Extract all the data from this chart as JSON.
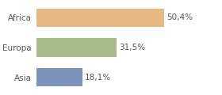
{
  "categories": [
    "Africa",
    "Europa",
    "Asia"
  ],
  "values": [
    50.4,
    31.5,
    18.1
  ],
  "labels": [
    "50,4%",
    "31,5%",
    "18,1%"
  ],
  "bar_colors": [
    "#e8b882",
    "#a8bc8a",
    "#7b93b8"
  ],
  "background_color": "#ffffff",
  "xlim": [
    0,
    72
  ],
  "bar_height": 0.62,
  "label_fontsize": 7.5,
  "tick_fontsize": 7.5,
  "label_color": "#555555",
  "tick_color": "#555555"
}
